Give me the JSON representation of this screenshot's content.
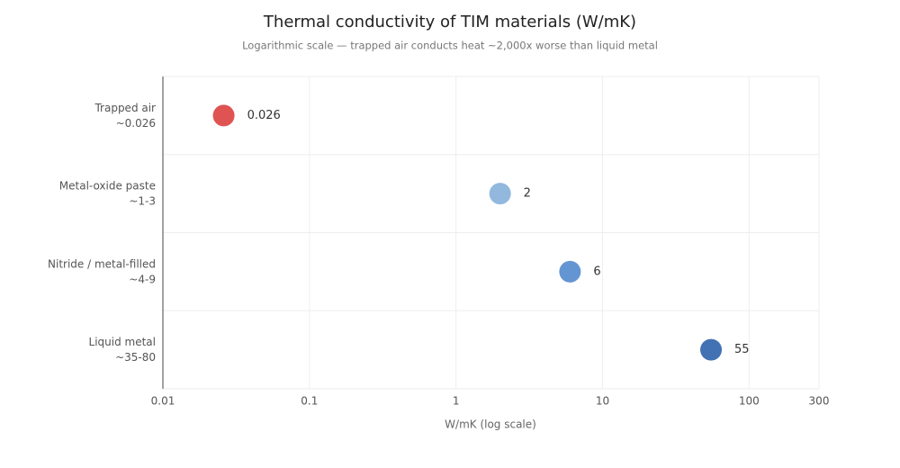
{
  "chart_data": {
    "type": "dot",
    "title": "Thermal conductivity of TIM materials (W/mK)",
    "subtitle": "Logarithmic scale — trapped air conducts heat ~2,000x worse than liquid metal",
    "categories": [
      "Trapped air",
      "Metal-oxide paste",
      "Nitride / metal-filled",
      "Liquid metal"
    ],
    "category_ranges": [
      "~0.026",
      "~1-3",
      "~4-9",
      "~35-80"
    ],
    "values": [
      0.026,
      2,
      6,
      55
    ],
    "colors": [
      "#e05353",
      "#93b8de",
      "#6495d3",
      "#4272b3"
    ],
    "xlabel": "W/mK (log scale)",
    "xlim": [
      0.01,
      300
    ],
    "xticks": [
      0.01,
      0.1,
      1,
      10,
      100,
      300
    ],
    "log_x": true,
    "grid": true
  }
}
